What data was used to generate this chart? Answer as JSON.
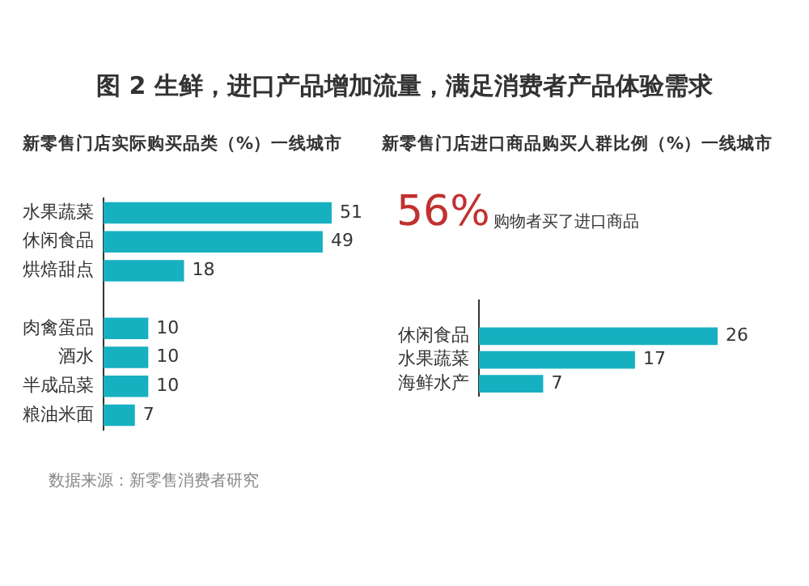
{
  "chart_data": [
    {
      "type": "bar",
      "orientation": "horizontal",
      "title": "图 2 生鲜，进口产品增加流量，满足消费者产品体验需求",
      "subtitle": "新零售门店实际购买品类（%）一线城市",
      "categories": [
        "水果蔬菜",
        "休闲食品",
        "烘焙甜点",
        null,
        "肉禽蛋品",
        "酒水",
        "半成品菜",
        "粮油米面"
      ],
      "series": [
        {
          "color": "#17b0c0",
          "values": [
            51,
            49,
            18,
            null,
            10,
            10,
            10,
            7
          ]
        }
      ],
      "data_labels": true,
      "tick_labels": "y",
      "annotations": [
        "数据来源：新零售消费者研究"
      ]
    },
    {
      "type": "bar",
      "orientation": "horizontal",
      "title": "新零售门店进口商品购买人群比例（%）一线城市",
      "categories": [
        null,
        "休闲食品",
        "水果蔬菜",
        "海鲜水产"
      ],
      "series": [
        {
          "color": "#17b0c0",
          "values": [
            null,
            26,
            17,
            7
          ]
        }
      ],
      "data_labels": true,
      "tick_labels": "y",
      "annotations": [
        "56%",
        "购物者买了进口商品"
      ]
    }
  ]
}
